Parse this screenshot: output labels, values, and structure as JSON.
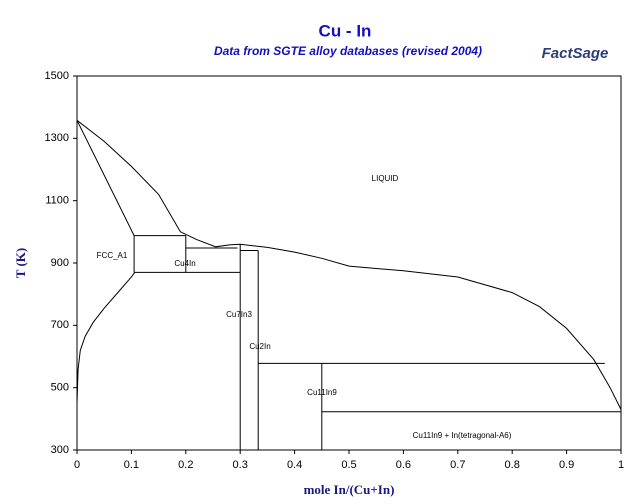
{
  "chart_data": {
    "type": "phase-diagram",
    "title": "Cu - In",
    "subtitle": "Data from SGTE alloy databases (revised 2004)",
    "logo": "FactSage",
    "x_label": "mole In/(Cu+In)",
    "y_label": "T (K)",
    "xlim": [
      0,
      1
    ],
    "ylim": [
      300,
      1500
    ],
    "xticks": [
      0,
      0.1,
      0.2,
      0.3,
      0.4,
      0.5,
      0.6,
      0.7,
      0.8,
      0.9,
      1
    ],
    "yticks": [
      300,
      500,
      700,
      900,
      1100,
      1300,
      1500
    ],
    "color": "#000000",
    "lines": [
      {
        "x": [
          0,
          0.05,
          0.1,
          0.15,
          0.19,
          0.22,
          0.255,
          0.28,
          0.3,
          0.35,
          0.4,
          0.45,
          0.5,
          0.6,
          0.7,
          0.8,
          0.85,
          0.9,
          0.95,
          0.98,
          1
        ],
        "y": [
          1358,
          1290,
          1210,
          1120,
          1000,
          975,
          952,
          958,
          960,
          950,
          935,
          915,
          890,
          875,
          855,
          805,
          760,
          690,
          590,
          500,
          430
        ]
      },
      {
        "x": [
          0,
          0.105
        ],
        "y": [
          1358,
          988
        ]
      },
      {
        "x": [
          0.106,
          0.1,
          0.08,
          0.05,
          0.03,
          0.015,
          0.006,
          0.002,
          0
        ],
        "y": [
          870,
          855,
          815,
          755,
          710,
          665,
          620,
          560,
          450
        ]
      },
      {
        "x": [
          0.105,
          0.2
        ],
        "y": [
          988,
          988
        ]
      },
      {
        "x": [
          0.105,
          0.105
        ],
        "y": [
          988,
          870
        ]
      },
      {
        "x": [
          0.2,
          0.2
        ],
        "y": [
          988,
          870
        ]
      },
      {
        "x": [
          0.2,
          0.295
        ],
        "y": [
          948,
          948
        ]
      },
      {
        "x": [
          0.105,
          0.3
        ],
        "y": [
          870,
          870
        ]
      },
      {
        "x": [
          0.3,
          0.3
        ],
        "y": [
          960,
          300
        ]
      },
      {
        "x": [
          0.3,
          0.333
        ],
        "y": [
          940,
          940
        ]
      },
      {
        "x": [
          0.333,
          0.333
        ],
        "y": [
          940,
          300
        ]
      },
      {
        "x": [
          0.333,
          0.97
        ],
        "y": [
          578,
          578
        ]
      },
      {
        "x": [
          0.45,
          0.45
        ],
        "y": [
          578,
          300
        ]
      },
      {
        "x": [
          0.45,
          1
        ],
        "y": [
          423,
          423
        ]
      }
    ],
    "annotations": [
      "LIQUID",
      "FCC_A1",
      "Cu4In",
      "Cu7In3",
      "Cu2In",
      "Cu11In9",
      "Cu11In9 + In(tetragonal-A6)"
    ]
  }
}
